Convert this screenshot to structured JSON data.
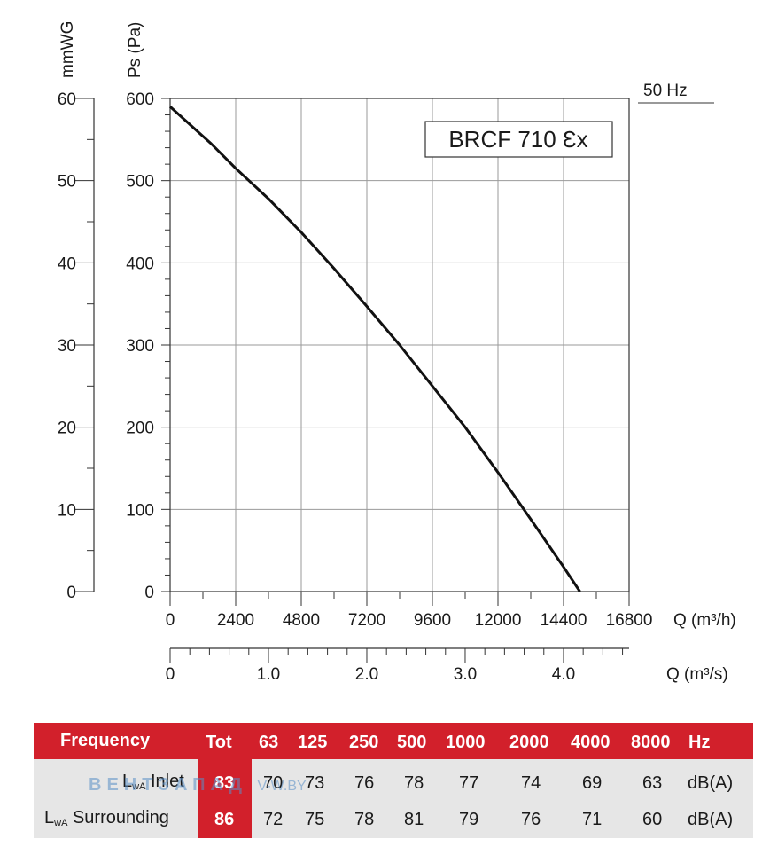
{
  "chart_data": {
    "type": "line",
    "model_label": "BRCF 710 Ɛx",
    "frequency_label": "50 Hz",
    "y_left_unit": "mmWG",
    "y_right_unit": "Ps (Pa)",
    "x_top_unit": "Q (m³/h)",
    "x_bottom_unit": "Q (m³/s)",
    "ylim_pa": [
      0,
      600
    ],
    "yticks_pa": [
      "0",
      "100",
      "200",
      "300",
      "400",
      "500",
      "600"
    ],
    "ylim_mmwg": [
      0,
      60
    ],
    "yticks_mmwg": [
      "0",
      "10",
      "20",
      "30",
      "40",
      "50",
      "60"
    ],
    "xlim_m3h": [
      0,
      16800
    ],
    "xticks_m3h": [
      "0",
      "2400",
      "4800",
      "7200",
      "9600",
      "12000",
      "14400",
      "16800"
    ],
    "xlim_m3s": [
      0,
      4.667
    ],
    "xticks_m3s": [
      {
        "value": 0,
        "label": "0"
      },
      {
        "value": 1.0,
        "label": "1.0"
      },
      {
        "value": 2.0,
        "label": "2.0"
      },
      {
        "value": 3.0,
        "label": "3.0"
      },
      {
        "value": 4.0,
        "label": "4.0"
      }
    ],
    "grid": true,
    "series": [
      {
        "x": [
          0,
          1500,
          2400,
          3600,
          4800,
          6000,
          7200,
          8400,
          9600,
          10800,
          12000,
          13200,
          14400,
          15000
        ],
        "y": [
          590,
          545,
          515,
          478,
          437,
          393,
          347,
          300,
          250,
          200,
          145,
          88,
          30,
          0
        ]
      }
    ]
  },
  "sound_table": {
    "header": {
      "frequency": "Frequency",
      "tot": "Tot",
      "bands": [
        "63",
        "125",
        "250",
        "500",
        "1000",
        "2000",
        "4000",
        "8000"
      ],
      "unit": "Hz"
    },
    "rows": [
      {
        "label_main": "L",
        "label_sub": "wA",
        "label_rest": " Inlet",
        "tot": "83",
        "values": [
          "70",
          "73",
          "76",
          "78",
          "77",
          "74",
          "69",
          "63"
        ],
        "unit": "dB(A)"
      },
      {
        "label_main": "L",
        "label_sub": "wA",
        "label_rest": " Surrounding",
        "tot": "86",
        "values": [
          "72",
          "75",
          "78",
          "81",
          "79",
          "76",
          "71",
          "60"
        ],
        "unit": "dB(A)"
      }
    ]
  },
  "watermark": {
    "main": "ВЕНТЗАПАД",
    "suffix": "V-W.BY"
  },
  "colors": {
    "accent": "#d2202b",
    "table_bg": "#e6e6e6",
    "curve": "#111111",
    "grid": "#9a9a9a"
  }
}
